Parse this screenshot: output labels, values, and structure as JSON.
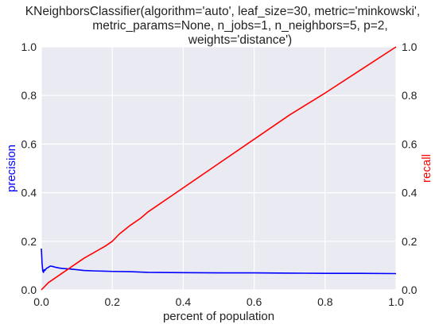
{
  "chart_data": {
    "type": "line",
    "title_lines": [
      "KNeighborsClassifier(algorithm='auto', leaf_size=30, metric='minkowski',",
      "metric_params=None, n_jobs=1, n_neighbors=5, p=2,",
      "weights='distance')"
    ],
    "xlabel": "percent of population",
    "ylabel_left": "precision",
    "ylabel_right": "recall",
    "xlim": [
      0.0,
      1.0
    ],
    "ylim_left": [
      0.0,
      1.0
    ],
    "ylim_right": [
      0.0,
      1.0
    ],
    "xticks": [
      "0.0",
      "0.2",
      "0.4",
      "0.6",
      "0.8",
      "1.0"
    ],
    "yticks_left": [
      "0.0",
      "0.2",
      "0.4",
      "0.6",
      "0.8",
      "1.0"
    ],
    "yticks_right": [
      "0.0",
      "0.2",
      "0.4",
      "0.6",
      "0.8",
      "1.0"
    ],
    "grid": true,
    "background_color": "#eaeaf2",
    "series": [
      {
        "axis": "left",
        "color": "#0000ff",
        "x": [
          0.0,
          0.002,
          0.004,
          0.006,
          0.008,
          0.01,
          0.014,
          0.02,
          0.025,
          0.03,
          0.04,
          0.05,
          0.06,
          0.08,
          0.1,
          0.12,
          0.15,
          0.2,
          0.25,
          0.3,
          0.4,
          0.5,
          0.6,
          0.7,
          0.8,
          0.9,
          1.0
        ],
        "values": [
          0.17,
          0.11,
          0.078,
          0.072,
          0.083,
          0.08,
          0.088,
          0.093,
          0.098,
          0.097,
          0.093,
          0.09,
          0.088,
          0.086,
          0.083,
          0.08,
          0.078,
          0.076,
          0.075,
          0.072,
          0.071,
          0.07,
          0.07,
          0.069,
          0.068,
          0.068,
          0.067
        ]
      },
      {
        "axis": "right",
        "color": "#ff0000",
        "x": [
          0.0,
          0.01,
          0.02,
          0.04,
          0.06,
          0.08,
          0.1,
          0.12,
          0.15,
          0.18,
          0.2,
          0.22,
          0.25,
          0.28,
          0.3,
          0.4,
          0.5,
          0.6,
          0.7,
          0.8,
          0.9,
          1.0
        ],
        "values": [
          0.0,
          0.015,
          0.03,
          0.05,
          0.07,
          0.09,
          0.11,
          0.13,
          0.155,
          0.18,
          0.2,
          0.23,
          0.265,
          0.295,
          0.32,
          0.42,
          0.52,
          0.62,
          0.72,
          0.81,
          0.905,
          1.0
        ]
      }
    ]
  }
}
